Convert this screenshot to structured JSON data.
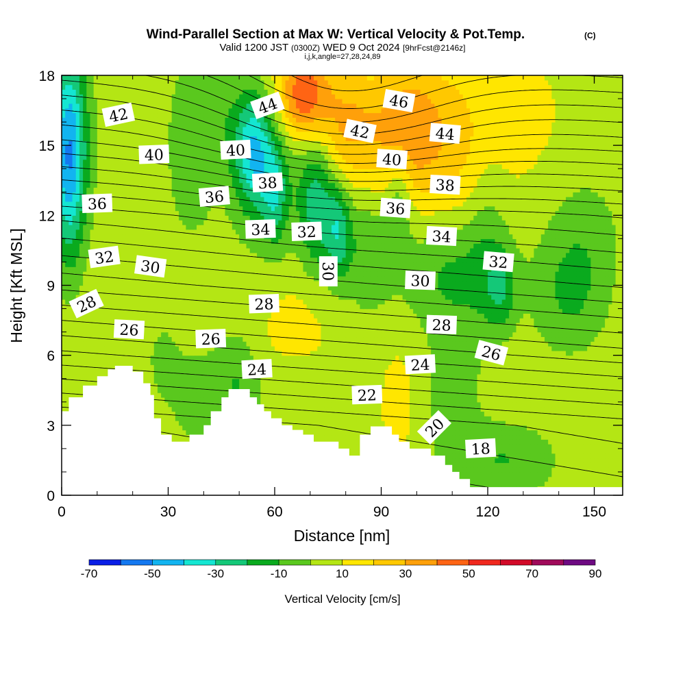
{
  "chart_data": {
    "type": "heatmap",
    "title": "Wind-Parallel Section at Max W: Vertical Velocity & Pot.Temp.",
    "title_mark": "(C)",
    "subtitle": {
      "valid": "Valid 1200 JST",
      "utc": "(0300Z)",
      "date": "WED 9 Oct 2024",
      "forecast": "[9hrFcst@2146z]"
    },
    "grid_info": "i,j,k,angle=27,28,24,89",
    "xlabel": "Distance [nm]",
    "ylabel": "Height [Kft MSL]",
    "xlim": [
      0,
      158
    ],
    "ylim": [
      0,
      18
    ],
    "x_ticks": [
      0,
      30,
      60,
      90,
      120,
      150
    ],
    "y_ticks": [
      0,
      3,
      6,
      9,
      12,
      15,
      18
    ],
    "colorbar": {
      "title": "Vertical Velocity [cm/s]",
      "levels": [
        -70,
        -60,
        -50,
        -40,
        -30,
        -20,
        -10,
        0,
        10,
        20,
        30,
        40,
        50,
        60,
        70,
        80,
        90
      ],
      "tick_labels": [
        -70,
        -50,
        -30,
        -10,
        10,
        30,
        50,
        70,
        90
      ],
      "colors": [
        "#0a1ee6",
        "#1478f0",
        "#12b4f0",
        "#14e6d2",
        "#14c878",
        "#0aaa1e",
        "#5ac81e",
        "#b4e614",
        "#ffe600",
        "#ffc800",
        "#ffa00a",
        "#ff6414",
        "#f0281e",
        "#d20a28",
        "#a00a5a",
        "#6e0a82"
      ]
    },
    "terrain": [
      [
        0,
        3.6
      ],
      [
        2,
        3.6
      ],
      [
        2,
        4.2
      ],
      [
        6,
        4.2
      ],
      [
        6,
        4.7
      ],
      [
        10,
        4.7
      ],
      [
        10,
        5.1
      ],
      [
        13,
        5.1
      ],
      [
        13,
        5.4
      ],
      [
        15,
        5.4
      ],
      [
        15,
        5.55
      ],
      [
        20,
        5.55
      ],
      [
        20,
        5.3
      ],
      [
        23,
        5.3
      ],
      [
        23,
        4.8
      ],
      [
        25,
        4.8
      ],
      [
        25,
        4.3
      ],
      [
        26,
        4.3
      ],
      [
        26,
        3.3
      ],
      [
        28,
        3.3
      ],
      [
        28,
        2.6
      ],
      [
        31,
        2.6
      ],
      [
        31,
        2.3
      ],
      [
        36,
        2.3
      ],
      [
        36,
        2.6
      ],
      [
        40,
        2.6
      ],
      [
        40,
        3.0
      ],
      [
        42,
        3.0
      ],
      [
        42,
        3.6
      ],
      [
        45,
        3.6
      ],
      [
        45,
        4.2
      ],
      [
        47,
        4.2
      ],
      [
        47,
        4.55
      ],
      [
        53,
        4.55
      ],
      [
        53,
        4.2
      ],
      [
        55,
        4.2
      ],
      [
        55,
        3.9
      ],
      [
        57,
        3.9
      ],
      [
        57,
        3.6
      ],
      [
        59,
        3.6
      ],
      [
        59,
        3.3
      ],
      [
        62,
        3.3
      ],
      [
        62,
        3.0
      ],
      [
        65,
        3.0
      ],
      [
        65,
        2.8
      ],
      [
        68,
        2.8
      ],
      [
        68,
        2.6
      ],
      [
        71,
        2.6
      ],
      [
        71,
        2.3
      ],
      [
        78,
        2.3
      ],
      [
        78,
        2.0
      ],
      [
        81,
        2.0
      ],
      [
        81,
        1.7
      ],
      [
        84,
        1.7
      ],
      [
        84,
        2.6
      ],
      [
        87,
        2.6
      ],
      [
        87,
        2.95
      ],
      [
        93,
        2.95
      ],
      [
        93,
        2.6
      ],
      [
        95,
        2.6
      ],
      [
        95,
        2.3
      ],
      [
        98,
        2.3
      ],
      [
        98,
        2.0
      ],
      [
        104,
        2.0
      ],
      [
        104,
        1.7
      ],
      [
        108,
        1.7
      ],
      [
        108,
        1.3
      ],
      [
        110,
        1.3
      ],
      [
        110,
        1.0
      ],
      [
        112,
        1.0
      ],
      [
        112,
        0.7
      ],
      [
        115,
        0.7
      ],
      [
        115,
        0.35
      ],
      [
        158,
        0.35
      ]
    ],
    "theta_levels": {
      "min": 17,
      "max": 48,
      "step": 1,
      "base_profile": [
        [
          0,
          17.6
        ],
        [
          3,
          19.7
        ],
        [
          6,
          24.7
        ],
        [
          9,
          29.3
        ],
        [
          12,
          33.3
        ],
        [
          15,
          38.6
        ],
        [
          18,
          43.3
        ]
      ],
      "horizontal_slope_per_nm": 0.018,
      "warm_anomaly": {
        "x": 78,
        "y": 16.5,
        "amplitude": 3.5,
        "x_width": 25,
        "y_width": 2.5
      }
    },
    "contour_labels": [
      {
        "text": "42",
        "x": 16,
        "y": 16.3,
        "angle": -12
      },
      {
        "text": "40",
        "x": 26,
        "y": 14.6,
        "angle": -2
      },
      {
        "text": "36",
        "x": 10,
        "y": 12.5,
        "angle": -2
      },
      {
        "text": "36",
        "x": 43,
        "y": 12.8,
        "angle": -5
      },
      {
        "text": "40",
        "x": 49,
        "y": 14.8,
        "angle": -3
      },
      {
        "text": "44",
        "x": 58,
        "y": 16.7,
        "angle": -20
      },
      {
        "text": "38",
        "x": 58,
        "y": 13.4,
        "angle": -3
      },
      {
        "text": "34",
        "x": 56,
        "y": 11.4,
        "angle": -2
      },
      {
        "text": "32",
        "x": 69,
        "y": 11.3,
        "angle": -2
      },
      {
        "text": "30",
        "x": 75,
        "y": 9.6,
        "angle": 90
      },
      {
        "text": "42",
        "x": 84,
        "y": 15.6,
        "angle": 12
      },
      {
        "text": "46",
        "x": 95,
        "y": 16.9,
        "angle": 10
      },
      {
        "text": "40",
        "x": 93,
        "y": 14.4,
        "angle": 4
      },
      {
        "text": "36",
        "x": 94,
        "y": 12.3,
        "angle": 4
      },
      {
        "text": "44",
        "x": 108,
        "y": 15.5,
        "angle": 5
      },
      {
        "text": "38",
        "x": 108,
        "y": 13.3,
        "angle": 3
      },
      {
        "text": "34",
        "x": 107,
        "y": 11.1,
        "angle": 3
      },
      {
        "text": "32",
        "x": 123,
        "y": 10.0,
        "angle": 5
      },
      {
        "text": "30",
        "x": 101,
        "y": 9.2,
        "angle": 2
      },
      {
        "text": "32",
        "x": 12,
        "y": 10.2,
        "angle": -8
      },
      {
        "text": "30",
        "x": 25,
        "y": 9.8,
        "angle": 8
      },
      {
        "text": "28",
        "x": 7,
        "y": 8.2,
        "angle": -25
      },
      {
        "text": "28",
        "x": 57,
        "y": 8.2,
        "angle": -2
      },
      {
        "text": "28",
        "x": 107,
        "y": 7.3,
        "angle": 2
      },
      {
        "text": "26",
        "x": 19,
        "y": 7.1,
        "angle": 3
      },
      {
        "text": "26",
        "x": 42,
        "y": 6.7,
        "angle": -2
      },
      {
        "text": "26",
        "x": 121,
        "y": 6.1,
        "angle": 15
      },
      {
        "text": "24",
        "x": 55,
        "y": 5.4,
        "angle": -3
      },
      {
        "text": "24",
        "x": 101,
        "y": 5.6,
        "angle": -3
      },
      {
        "text": "22",
        "x": 86,
        "y": 4.3,
        "angle": -2
      },
      {
        "text": "20",
        "x": 105,
        "y": 2.9,
        "angle": -45
      },
      {
        "text": "18",
        "x": 118,
        "y": 2.0,
        "angle": -3
      }
    ],
    "w_field": {
      "background": 8,
      "features": [
        {
          "x": 2,
          "y": 14.5,
          "sx": 3.2,
          "sy": 3.0,
          "amp": -45
        },
        {
          "x": 3,
          "y": 15.5,
          "sx": 5,
          "sy": 4,
          "amp": -15
        },
        {
          "x": 54,
          "y": 14.8,
          "sx": 3.8,
          "sy": 1.7,
          "amp": -42
        },
        {
          "x": 60,
          "y": 13.0,
          "sx": 2.5,
          "sy": 1.5,
          "amp": -25
        },
        {
          "x": 72,
          "y": 12.5,
          "sx": 3.5,
          "sy": 2.0,
          "amp": -30
        },
        {
          "x": 78,
          "y": 11.3,
          "sx": 2.5,
          "sy": 1.5,
          "amp": -28
        },
        {
          "x": 60,
          "y": 13.0,
          "sx": 10,
          "sy": 3.0,
          "amp": -12
        },
        {
          "x": 36,
          "y": 15.0,
          "sx": 5,
          "sy": 3.0,
          "amp": -15
        },
        {
          "x": 45,
          "y": 16.5,
          "sx": 5,
          "sy": 2.0,
          "amp": -10
        },
        {
          "x": 86,
          "y": 10.5,
          "sx": 5,
          "sy": 2.0,
          "amp": -16
        },
        {
          "x": 95,
          "y": 12.8,
          "sx": 2.5,
          "sy": 1.6,
          "amp": -18
        },
        {
          "x": 110,
          "y": 9.5,
          "sx": 10,
          "sy": 1.8,
          "amp": -20
        },
        {
          "x": 124,
          "y": 8.8,
          "sx": 3,
          "sy": 1.2,
          "amp": -18
        },
        {
          "x": 120,
          "y": 10.5,
          "sx": 4,
          "sy": 3.0,
          "amp": -10
        },
        {
          "x": 143,
          "y": 8.5,
          "sx": 8,
          "sy": 2.0,
          "amp": -18
        },
        {
          "x": 148,
          "y": 11.5,
          "sx": 8,
          "sy": 2.0,
          "amp": -10
        },
        {
          "x": 110,
          "y": 4.5,
          "sx": 6,
          "sy": 2.0,
          "amp": -12
        },
        {
          "x": 125,
          "y": 1.5,
          "sx": 12,
          "sy": 1.2,
          "amp": -18
        },
        {
          "x": 40,
          "y": 4.0,
          "sx": 8,
          "sy": 2.0,
          "amp": -12
        },
        {
          "x": 50,
          "y": 5.0,
          "sx": 4,
          "sy": 1.5,
          "amp": -12
        },
        {
          "x": 28,
          "y": 6.0,
          "sx": 4,
          "sy": 1.5,
          "amp": -8
        },
        {
          "x": 65,
          "y": 4.5,
          "sx": 8,
          "sy": 1.2,
          "amp": -8
        },
        {
          "x": 68,
          "y": 17.2,
          "sx": 5,
          "sy": 1.3,
          "amp": 42
        },
        {
          "x": 80,
          "y": 15.8,
          "sx": 6,
          "sy": 1.8,
          "amp": 22
        },
        {
          "x": 96,
          "y": 15.5,
          "sx": 8,
          "sy": 2.0,
          "amp": 20
        },
        {
          "x": 110,
          "y": 15.0,
          "sx": 7,
          "sy": 2.5,
          "amp": 12
        },
        {
          "x": 125,
          "y": 16.0,
          "sx": 10,
          "sy": 2.0,
          "amp": 6
        },
        {
          "x": 65,
          "y": 7.2,
          "sx": 7,
          "sy": 2.0,
          "amp": 8
        },
        {
          "x": 95,
          "y": 4.0,
          "sx": 3,
          "sy": 1.5,
          "amp": 8
        },
        {
          "x": 143,
          "y": 3.0,
          "sx": 6,
          "sy": 2.5,
          "amp": 2
        },
        {
          "x": 98,
          "y": 16.0,
          "sx": 6,
          "sy": 2.0,
          "amp": 10
        }
      ]
    }
  }
}
